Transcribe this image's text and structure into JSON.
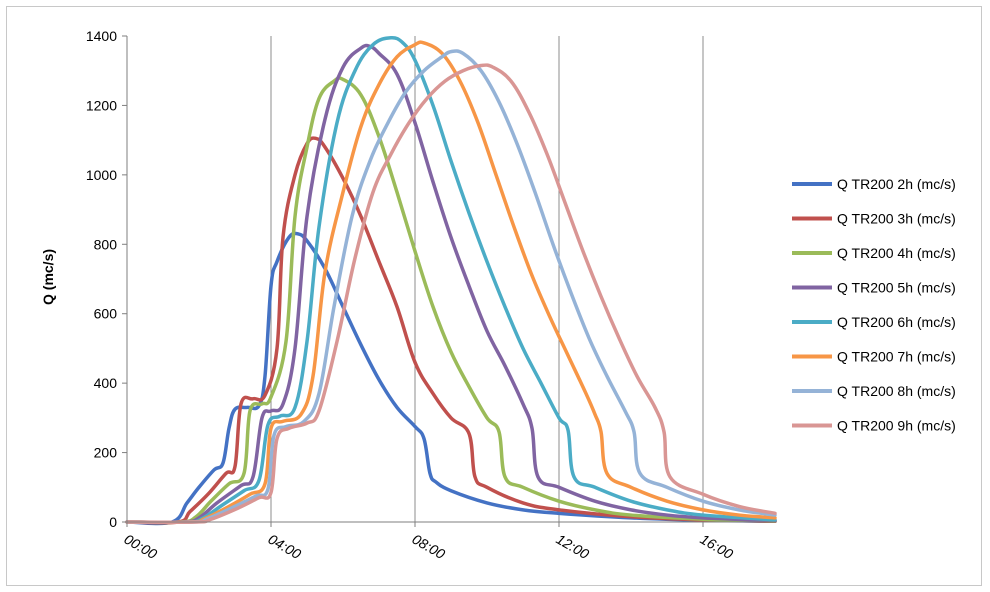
{
  "chart_data": {
    "type": "line",
    "title": "",
    "xlabel": "",
    "ylabel": "Q (mc/s)",
    "xlim": [
      "00:00",
      "18:00"
    ],
    "ylim": [
      0,
      1400
    ],
    "x_tick_labels": [
      "00:00",
      "04:00",
      "08:00",
      "12:00",
      "16:00"
    ],
    "y_tick_labels": [
      "0",
      "200",
      "400",
      "600",
      "800",
      "1000",
      "1200",
      "1400"
    ],
    "grid": "vertical",
    "legend_position": "right",
    "series": [
      {
        "name": "Q TR200 2h  (mc/s)",
        "color": "#4472C4",
        "points": [
          [
            "00:00",
            0
          ],
          [
            "01:15",
            0
          ],
          [
            "01:40",
            55
          ],
          [
            "02:00",
            100
          ],
          [
            "02:25",
            150
          ],
          [
            "02:40",
            170
          ],
          [
            "02:50",
            270
          ],
          [
            "03:00",
            325
          ],
          [
            "03:20",
            330
          ],
          [
            "03:40",
            335
          ],
          [
            "03:50",
            420
          ],
          [
            "04:00",
            680
          ],
          [
            "04:10",
            750
          ],
          [
            "04:30",
            820
          ],
          [
            "04:45",
            830
          ],
          [
            "05:00",
            810
          ],
          [
            "05:30",
            730
          ],
          [
            "06:00",
            620
          ],
          [
            "06:30",
            510
          ],
          [
            "07:00",
            410
          ],
          [
            "07:30",
            330
          ],
          [
            "08:00",
            275
          ],
          [
            "08:15",
            240
          ],
          [
            "08:25",
            140
          ],
          [
            "08:35",
            115
          ],
          [
            "09:00",
            90
          ],
          [
            "10:00",
            55
          ],
          [
            "11:00",
            35
          ],
          [
            "12:00",
            25
          ],
          [
            "14:00",
            12
          ],
          [
            "16:00",
            5
          ],
          [
            "18:00",
            2
          ]
        ]
      },
      {
        "name": "Q TR200 3h  (mc/s)",
        "color": "#C0504D",
        "points": [
          [
            "00:00",
            0
          ],
          [
            "01:25",
            0
          ],
          [
            "01:45",
            30
          ],
          [
            "02:15",
            80
          ],
          [
            "02:45",
            140
          ],
          [
            "03:00",
            160
          ],
          [
            "03:10",
            340
          ],
          [
            "03:30",
            355
          ],
          [
            "03:50",
            365
          ],
          [
            "04:10",
            500
          ],
          [
            "04:20",
            820
          ],
          [
            "04:40",
            1000
          ],
          [
            "05:00",
            1090
          ],
          [
            "05:15",
            1105
          ],
          [
            "05:30",
            1080
          ],
          [
            "06:00",
            990
          ],
          [
            "06:30",
            880
          ],
          [
            "07:00",
            750
          ],
          [
            "07:30",
            620
          ],
          [
            "08:00",
            460
          ],
          [
            "08:30",
            370
          ],
          [
            "09:00",
            300
          ],
          [
            "09:30",
            255
          ],
          [
            "09:40",
            130
          ],
          [
            "10:00",
            100
          ],
          [
            "11:00",
            55
          ],
          [
            "12:00",
            35
          ],
          [
            "14:00",
            15
          ],
          [
            "16:00",
            6
          ],
          [
            "18:00",
            2
          ]
        ]
      },
      {
        "name": "Q TR200 4h  (mc/s)",
        "color": "#9BBB59",
        "points": [
          [
            "00:00",
            0
          ],
          [
            "01:30",
            0
          ],
          [
            "01:55",
            15
          ],
          [
            "02:20",
            60
          ],
          [
            "02:50",
            110
          ],
          [
            "03:15",
            140
          ],
          [
            "03:25",
            320
          ],
          [
            "03:45",
            340
          ],
          [
            "04:00",
            360
          ],
          [
            "04:25",
            520
          ],
          [
            "04:40",
            880
          ],
          [
            "05:00",
            1080
          ],
          [
            "05:20",
            1220
          ],
          [
            "05:45",
            1270
          ],
          [
            "06:00",
            1275
          ],
          [
            "06:30",
            1230
          ],
          [
            "07:00",
            1110
          ],
          [
            "07:30",
            950
          ],
          [
            "08:00",
            780
          ],
          [
            "08:30",
            620
          ],
          [
            "09:00",
            490
          ],
          [
            "09:30",
            390
          ],
          [
            "10:00",
            300
          ],
          [
            "10:20",
            260
          ],
          [
            "10:30",
            130
          ],
          [
            "11:00",
            100
          ],
          [
            "12:00",
            60
          ],
          [
            "13:00",
            35
          ],
          [
            "14:00",
            20
          ],
          [
            "16:00",
            8
          ],
          [
            "18:00",
            3
          ]
        ]
      },
      {
        "name": "Q TR200 5h  (mc/s)",
        "color": "#8064A2",
        "points": [
          [
            "00:00",
            0
          ],
          [
            "01:35",
            0
          ],
          [
            "02:00",
            12
          ],
          [
            "02:30",
            55
          ],
          [
            "03:10",
            105
          ],
          [
            "03:30",
            130
          ],
          [
            "03:45",
            300
          ],
          [
            "04:00",
            320
          ],
          [
            "04:20",
            340
          ],
          [
            "04:40",
            500
          ],
          [
            "05:00",
            880
          ],
          [
            "05:30",
            1160
          ],
          [
            "06:00",
            1310
          ],
          [
            "06:30",
            1365
          ],
          [
            "06:45",
            1370
          ],
          [
            "07:00",
            1350
          ],
          [
            "07:30",
            1290
          ],
          [
            "08:00",
            1150
          ],
          [
            "08:30",
            980
          ],
          [
            "09:00",
            820
          ],
          [
            "09:30",
            680
          ],
          [
            "10:00",
            550
          ],
          [
            "10:30",
            450
          ],
          [
            "11:00",
            340
          ],
          [
            "11:15",
            270
          ],
          [
            "11:25",
            130
          ],
          [
            "12:00",
            100
          ],
          [
            "13:00",
            60
          ],
          [
            "14:00",
            35
          ],
          [
            "15:00",
            20
          ],
          [
            "16:00",
            12
          ],
          [
            "18:00",
            4
          ]
        ]
      },
      {
        "name": "Q TR200 6h  (mc/s)",
        "color": "#4BACC6",
        "points": [
          [
            "00:00",
            0
          ],
          [
            "01:40",
            0
          ],
          [
            "02:05",
            10
          ],
          [
            "02:40",
            50
          ],
          [
            "03:15",
            90
          ],
          [
            "03:40",
            120
          ],
          [
            "03:55",
            280
          ],
          [
            "04:15",
            305
          ],
          [
            "04:40",
            330
          ],
          [
            "05:00",
            520
          ],
          [
            "05:20",
            850
          ],
          [
            "05:50",
            1150
          ],
          [
            "06:20",
            1300
          ],
          [
            "06:50",
            1375
          ],
          [
            "07:20",
            1395
          ],
          [
            "07:40",
            1380
          ],
          [
            "08:00",
            1330
          ],
          [
            "08:30",
            1200
          ],
          [
            "09:00",
            1040
          ],
          [
            "09:30",
            890
          ],
          [
            "10:00",
            750
          ],
          [
            "10:30",
            620
          ],
          [
            "11:00",
            500
          ],
          [
            "11:30",
            400
          ],
          [
            "12:00",
            300
          ],
          [
            "12:15",
            265
          ],
          [
            "12:25",
            130
          ],
          [
            "13:00",
            100
          ],
          [
            "14:00",
            60
          ],
          [
            "15:00",
            35
          ],
          [
            "16:00",
            20
          ],
          [
            "18:00",
            6
          ]
        ]
      },
      {
        "name": "Q TR200 7h  (mc/s)",
        "color": "#F79646",
        "points": [
          [
            "00:00",
            0
          ],
          [
            "01:45",
            0
          ],
          [
            "02:10",
            10
          ],
          [
            "02:50",
            45
          ],
          [
            "03:25",
            80
          ],
          [
            "03:50",
            110
          ],
          [
            "04:00",
            270
          ],
          [
            "04:20",
            290
          ],
          [
            "04:50",
            310
          ],
          [
            "05:10",
            420
          ],
          [
            "05:30",
            720
          ],
          [
            "06:00",
            950
          ],
          [
            "06:30",
            1140
          ],
          [
            "07:00",
            1260
          ],
          [
            "07:30",
            1340
          ],
          [
            "08:00",
            1375
          ],
          [
            "08:15",
            1380
          ],
          [
            "08:45",
            1350
          ],
          [
            "09:15",
            1270
          ],
          [
            "09:45",
            1150
          ],
          [
            "10:15",
            1000
          ],
          [
            "10:45",
            850
          ],
          [
            "11:15",
            710
          ],
          [
            "11:45",
            590
          ],
          [
            "12:15",
            480
          ],
          [
            "12:45",
            370
          ],
          [
            "13:00",
            310
          ],
          [
            "13:10",
            260
          ],
          [
            "13:20",
            140
          ],
          [
            "14:00",
            100
          ],
          [
            "15:00",
            60
          ],
          [
            "16:00",
            35
          ],
          [
            "17:00",
            20
          ],
          [
            "18:00",
            12
          ]
        ]
      },
      {
        "name": "Q TR200 8h  (mc/s)",
        "color": "#95B3D7",
        "points": [
          [
            "00:00",
            0
          ],
          [
            "01:50",
            0
          ],
          [
            "02:15",
            10
          ],
          [
            "03:00",
            45
          ],
          [
            "03:35",
            75
          ],
          [
            "03:55",
            95
          ],
          [
            "04:05",
            250
          ],
          [
            "04:25",
            275
          ],
          [
            "04:55",
            290
          ],
          [
            "05:20",
            370
          ],
          [
            "05:45",
            620
          ],
          [
            "06:15",
            880
          ],
          [
            "06:45",
            1040
          ],
          [
            "07:15",
            1150
          ],
          [
            "07:45",
            1240
          ],
          [
            "08:15",
            1300
          ],
          [
            "08:45",
            1340
          ],
          [
            "09:00",
            1355
          ],
          [
            "09:20",
            1350
          ],
          [
            "09:50",
            1300
          ],
          [
            "10:20",
            1210
          ],
          [
            "10:50",
            1090
          ],
          [
            "11:20",
            950
          ],
          [
            "11:50",
            800
          ],
          [
            "12:20",
            660
          ],
          [
            "12:50",
            530
          ],
          [
            "13:20",
            420
          ],
          [
            "13:50",
            320
          ],
          [
            "14:05",
            260
          ],
          [
            "14:15",
            140
          ],
          [
            "15:00",
            100
          ],
          [
            "16:00",
            60
          ],
          [
            "17:00",
            35
          ],
          [
            "18:00",
            20
          ]
        ]
      },
      {
        "name": "Q TR200 9h  (mc/s)",
        "color": "#D99694",
        "points": [
          [
            "00:00",
            0
          ],
          [
            "01:55",
            0
          ],
          [
            "02:20",
            8
          ],
          [
            "03:05",
            40
          ],
          [
            "03:40",
            70
          ],
          [
            "04:00",
            85
          ],
          [
            "04:10",
            240
          ],
          [
            "04:30",
            270
          ],
          [
            "05:00",
            285
          ],
          [
            "05:20",
            320
          ],
          [
            "05:50",
            520
          ],
          [
            "06:20",
            760
          ],
          [
            "06:50",
            950
          ],
          [
            "07:20",
            1060
          ],
          [
            "07:50",
            1150
          ],
          [
            "08:20",
            1220
          ],
          [
            "08:50",
            1270
          ],
          [
            "09:20",
            1300
          ],
          [
            "09:50",
            1315
          ],
          [
            "10:10",
            1310
          ],
          [
            "10:40",
            1270
          ],
          [
            "11:10",
            1180
          ],
          [
            "11:40",
            1060
          ],
          [
            "12:10",
            920
          ],
          [
            "12:40",
            780
          ],
          [
            "13:10",
            650
          ],
          [
            "13:40",
            530
          ],
          [
            "14:10",
            420
          ],
          [
            "14:40",
            330
          ],
          [
            "14:55",
            260
          ],
          [
            "15:05",
            130
          ],
          [
            "16:00",
            80
          ],
          [
            "17:00",
            45
          ],
          [
            "18:00",
            25
          ]
        ]
      }
    ]
  }
}
